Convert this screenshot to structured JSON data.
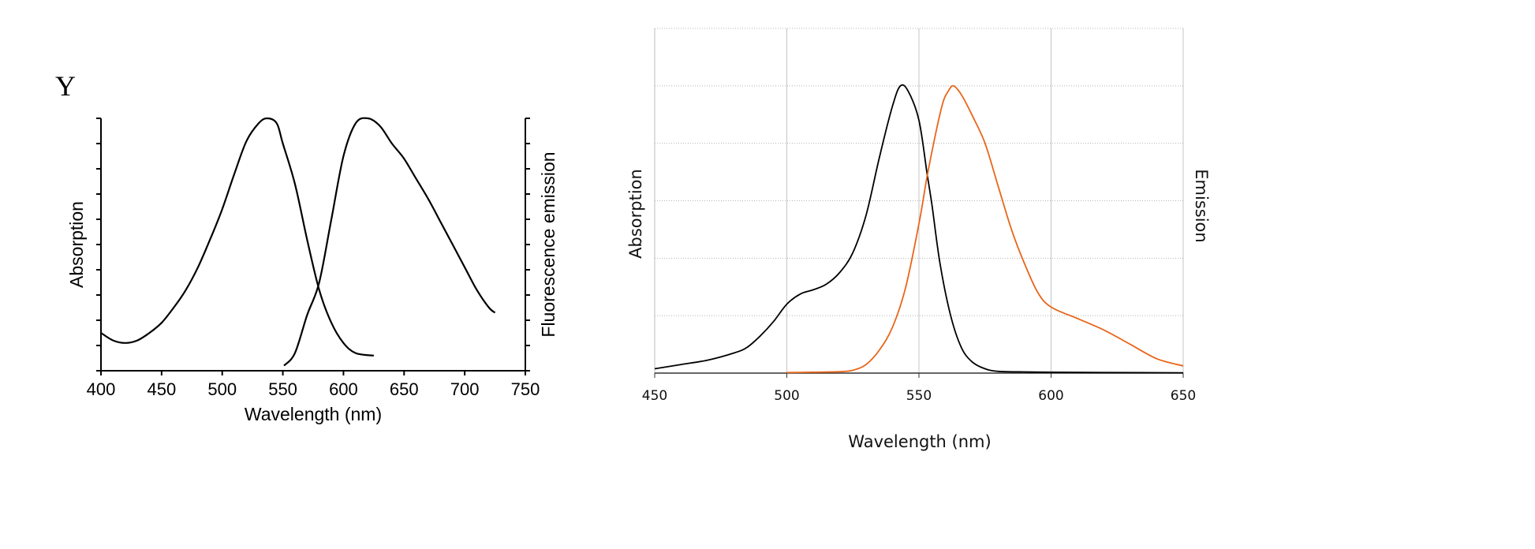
{
  "panel_label": "Y",
  "chart_data": [
    {
      "type": "line",
      "title": "",
      "xlabel": "Wavelength (nm)",
      "ylabel_left": "Absorption",
      "ylabel_right": "Fluorescence emission",
      "xlim": [
        400,
        750
      ],
      "ylim": [
        0,
        1
      ],
      "x_ticks": [
        400,
        450,
        500,
        550,
        600,
        650,
        700,
        750
      ],
      "grid": false,
      "series": [
        {
          "color": "#000000",
          "points": [
            [
              400,
              0.15
            ],
            [
              410,
              0.12
            ],
            [
              420,
              0.11
            ],
            [
              430,
              0.12
            ],
            [
              440,
              0.15
            ],
            [
              450,
              0.19
            ],
            [
              460,
              0.25
            ],
            [
              470,
              0.32
            ],
            [
              480,
              0.41
            ],
            [
              490,
              0.52
            ],
            [
              500,
              0.64
            ],
            [
              510,
              0.78
            ],
            [
              520,
              0.91
            ],
            [
              530,
              0.98
            ],
            [
              537,
              1.0
            ],
            [
              545,
              0.98
            ],
            [
              550,
              0.9
            ],
            [
              560,
              0.74
            ],
            [
              570,
              0.52
            ],
            [
              580,
              0.32
            ],
            [
              590,
              0.19
            ],
            [
              600,
              0.11
            ],
            [
              610,
              0.07
            ],
            [
              625,
              0.06
            ]
          ]
        },
        {
          "color": "#000000",
          "points": [
            [
              551,
              0.02
            ],
            [
              560,
              0.07
            ],
            [
              570,
              0.22
            ],
            [
              580,
              0.35
            ],
            [
              590,
              0.6
            ],
            [
              600,
              0.85
            ],
            [
              610,
              0.98
            ],
            [
              620,
              1.0
            ],
            [
              630,
              0.97
            ],
            [
              640,
              0.9
            ],
            [
              650,
              0.84
            ],
            [
              660,
              0.76
            ],
            [
              670,
              0.68
            ],
            [
              680,
              0.59
            ],
            [
              690,
              0.5
            ],
            [
              700,
              0.41
            ],
            [
              710,
              0.32
            ],
            [
              720,
              0.25
            ],
            [
              725,
              0.23
            ]
          ]
        }
      ]
    },
    {
      "type": "line",
      "title": "",
      "xlabel": "Wavelength (nm)",
      "ylabel_left": "Absorption",
      "ylabel_right": "Emission",
      "xlim": [
        450,
        650
      ],
      "ylim": [
        0,
        1.2
      ],
      "x_ticks": [
        450,
        500,
        550,
        600,
        650
      ],
      "y_gridlines": [
        0,
        0.2,
        0.4,
        0.6,
        0.8,
        1.0,
        1.2
      ],
      "grid": true,
      "series": [
        {
          "color": "#000000",
          "points": [
            [
              450,
              0.015
            ],
            [
              460,
              0.03
            ],
            [
              470,
              0.045
            ],
            [
              480,
              0.07
            ],
            [
              485,
              0.09
            ],
            [
              490,
              0.13
            ],
            [
              495,
              0.18
            ],
            [
              500,
              0.24
            ],
            [
              505,
              0.275
            ],
            [
              510,
              0.29
            ],
            [
              515,
              0.31
            ],
            [
              520,
              0.35
            ],
            [
              525,
              0.42
            ],
            [
              530,
              0.55
            ],
            [
              535,
              0.75
            ],
            [
              540,
              0.93
            ],
            [
              543,
              1.0
            ],
            [
              546,
              0.98
            ],
            [
              550,
              0.88
            ],
            [
              553,
              0.7
            ],
            [
              555,
              0.58
            ],
            [
              558,
              0.38
            ],
            [
              562,
              0.2
            ],
            [
              566,
              0.09
            ],
            [
              570,
              0.04
            ],
            [
              575,
              0.015
            ],
            [
              580,
              0.006
            ],
            [
              590,
              0.004
            ],
            [
              600,
              0.003
            ],
            [
              620,
              0.002
            ],
            [
              650,
              0.001
            ]
          ]
        },
        {
          "color": "#e8661a",
          "points": [
            [
              500,
              0.002
            ],
            [
              510,
              0.003
            ],
            [
              520,
              0.005
            ],
            [
              525,
              0.01
            ],
            [
              530,
              0.03
            ],
            [
              535,
              0.08
            ],
            [
              540,
              0.16
            ],
            [
              545,
              0.3
            ],
            [
              550,
              0.52
            ],
            [
              553,
              0.68
            ],
            [
              556,
              0.82
            ],
            [
              559,
              0.94
            ],
            [
              561,
              0.98
            ],
            [
              563,
              1.0
            ],
            [
              566,
              0.97
            ],
            [
              570,
              0.9
            ],
            [
              575,
              0.8
            ],
            [
              580,
              0.65
            ],
            [
              585,
              0.5
            ],
            [
              590,
              0.38
            ],
            [
              595,
              0.28
            ],
            [
              600,
              0.23
            ],
            [
              610,
              0.19
            ],
            [
              620,
              0.15
            ],
            [
              630,
              0.1
            ],
            [
              640,
              0.05
            ],
            [
              650,
              0.025
            ]
          ]
        }
      ]
    }
  ]
}
